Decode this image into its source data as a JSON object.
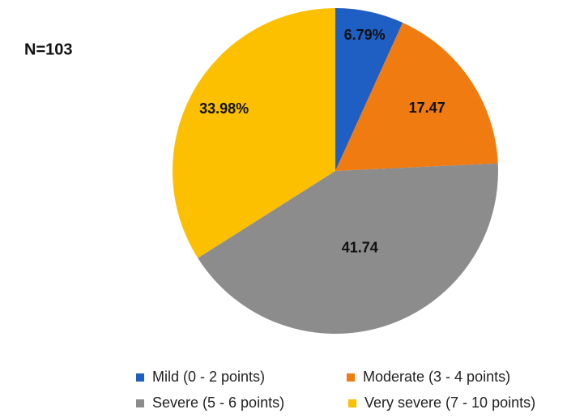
{
  "chart_data": {
    "type": "pie",
    "annotation": "N=103",
    "categories": [
      "Mild (0 - 2 points)",
      "Moderate (3 - 4 points)",
      "Severe (5 - 6 points)",
      "Very severe (7 - 10 points)"
    ],
    "values": [
      6.79,
      17.47,
      41.74,
      33.98
    ],
    "value_labels": [
      "6.79%",
      "17.47",
      "41.74",
      "33.98%"
    ],
    "colors": [
      "#1f5fc4",
      "#f07b10",
      "#8c8c8c",
      "#fcc000"
    ],
    "legend": "bottom"
  }
}
